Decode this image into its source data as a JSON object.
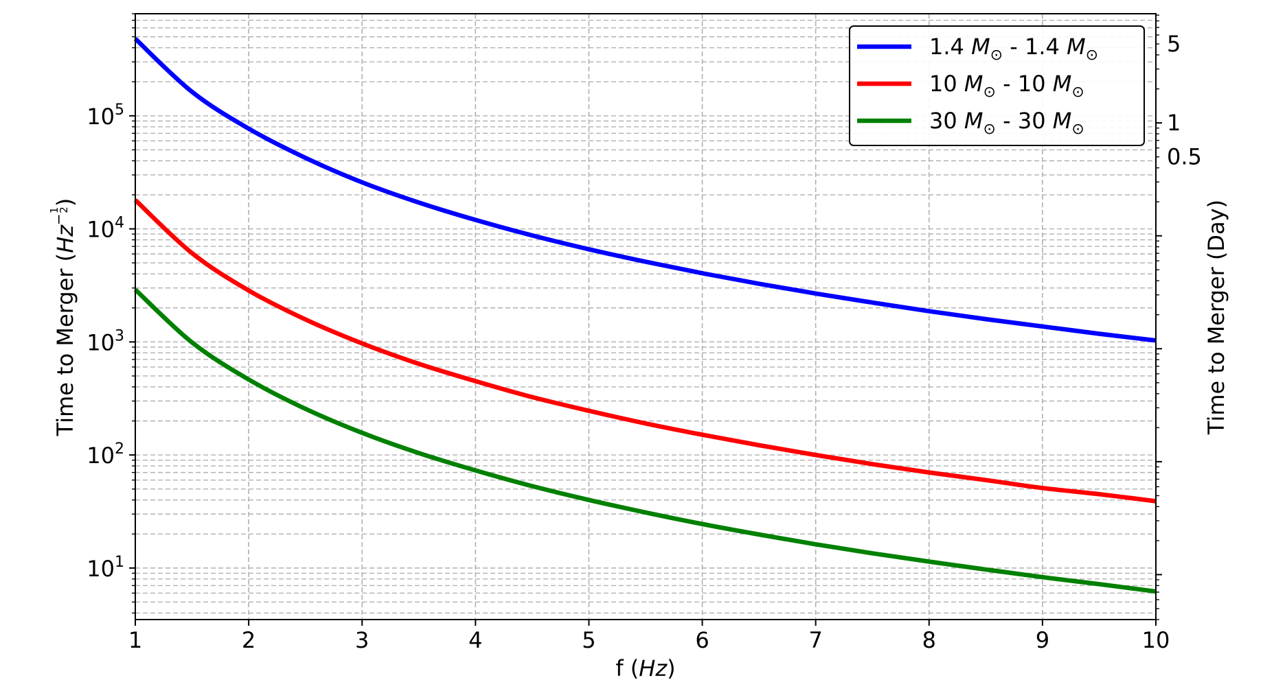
{
  "chart_data": {
    "type": "line",
    "xlabel_plain": "f (",
    "xlabel_italic": "Hz",
    "xlabel_close": ")",
    "ylabel_plain": "Time to Merger (",
    "ylabel_italic": "Hz",
    "ylabel_exp_num": "1",
    "ylabel_exp_den": "2",
    "ylabel_close": ")",
    "y2label": "Time to Merger (Day)",
    "x": [
      1,
      1.5,
      2,
      2.5,
      3,
      3.5,
      4,
      4.5,
      5,
      5.5,
      6,
      6.5,
      7,
      7.5,
      8,
      8.5,
      9,
      9.5,
      10
    ],
    "xlim": [
      1,
      10
    ],
    "xticks": [
      "1",
      "2",
      "3",
      "4",
      "5",
      "6",
      "7",
      "8",
      "9",
      "10"
    ],
    "ylim": [
      3.5,
      800000
    ],
    "yscale": "log",
    "yticks": [
      {
        "value": 10,
        "base": "10",
        "exp": "1"
      },
      {
        "value": 100,
        "base": "10",
        "exp": "2"
      },
      {
        "value": 1000,
        "base": "10",
        "exp": "3"
      },
      {
        "value": 10000,
        "base": "10",
        "exp": "4"
      },
      {
        "value": 100000,
        "base": "10",
        "exp": "5"
      }
    ],
    "y2lim": [
      4e-05,
      9.26
    ],
    "y2scale": "log",
    "y2ticks": [
      {
        "value": 5,
        "label": "5"
      },
      {
        "value": 1,
        "label": "1"
      },
      {
        "value": 0.5,
        "label": "0.5"
      }
    ],
    "grid": true,
    "legend_position": "top-right",
    "series": [
      {
        "name_a": "1.4 ",
        "name_b": " - 1.4 ",
        "color": "#0000ff",
        "values": [
          480000,
          163000,
          77000,
          42500,
          25800,
          17100,
          12000,
          8750,
          6600,
          5120,
          4050,
          3270,
          2680,
          2230,
          1870,
          1590,
          1370,
          1180,
          1030
        ]
      },
      {
        "name_a": "10 ",
        "name_b": " - 10 ",
        "color": "#ff0000",
        "values": [
          18000,
          6100,
          2850,
          1580,
          970,
          640,
          450,
          325,
          246,
          190,
          151,
          122,
          100,
          83,
          70,
          60,
          51,
          45,
          39
        ]
      },
      {
        "name_a": "30 ",
        "name_b": " - 30 ",
        "color": "#008000",
        "values": [
          2900,
          990,
          465,
          256,
          157,
          104,
          73,
          53,
          40,
          31,
          24.5,
          19.8,
          16.2,
          13.5,
          11.4,
          9.7,
          8.3,
          7.2,
          6.2
        ]
      }
    ]
  }
}
